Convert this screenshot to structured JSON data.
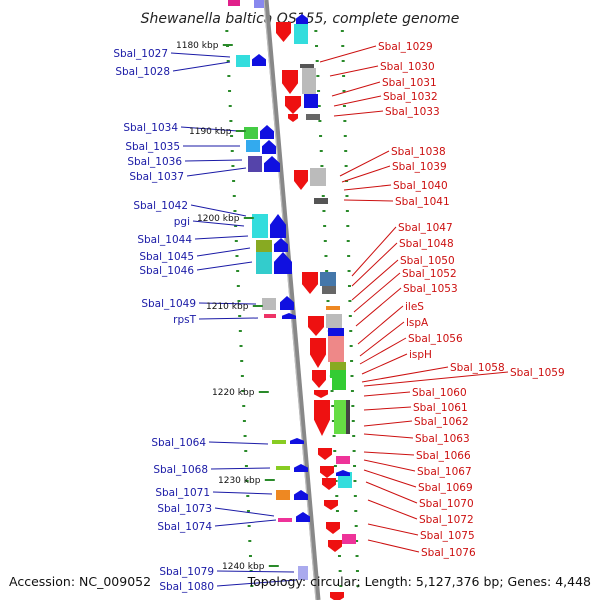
{
  "title": "Shewanella baltica OS155, complete genome",
  "footer": {
    "accession": "Accession: NC_009052",
    "summary": "Topology: circular; Length: 5,127,376 bp; Genes: 4,448"
  },
  "colors": {
    "axis": "#888888",
    "tick": "#2a8a2a",
    "left_label": "#1a1aa6",
    "right_label": "#cc1010",
    "forward_gene": "#1010e0",
    "reverse_gene": "#ee1111"
  },
  "kbp_marks": [
    "1180 kbp",
    "1190 kbp",
    "1200 kbp",
    "1210 kbp",
    "1220 kbp",
    "1230 kbp",
    "1240 kbp"
  ],
  "left_genes": [
    "Sbal_1027",
    "Sbal_1028",
    "Sbal_1034",
    "Sbal_1035",
    "Sbal_1036",
    "Sbal_1037",
    "Sbal_1042",
    "pgi",
    "Sbal_1044",
    "Sbal_1045",
    "Sbal_1046",
    "Sbal_1049",
    "rpsT",
    "Sbal_1064",
    "Sbal_1068",
    "Sbal_1071",
    "Sbal_1073",
    "Sbal_1074",
    "Sbal_1079",
    "Sbal_1080"
  ],
  "right_genes": [
    "Sbal_1029",
    "Sbal_1030",
    "Sbal_1031",
    "Sbal_1032",
    "Sbal_1033",
    "Sbal_1038",
    "Sbal_1039",
    "Sbal_1040",
    "Sbal_1041",
    "Sbal_1047",
    "Sbal_1048",
    "Sbal_1050",
    "Sbal_1052",
    "Sbal_1053",
    "ileS",
    "lspA",
    "Sbal_1056",
    "ispH",
    "Sbal_1058",
    "Sbal_1059",
    "Sbal_1060",
    "Sbal_1061",
    "Sbal_1062",
    "Sbal_1063",
    "Sbal_1066",
    "Sbal_1067",
    "Sbal_1069",
    "Sbal_1070",
    "Sbal_1072",
    "Sbal_1075",
    "Sbal_1076"
  ]
}
